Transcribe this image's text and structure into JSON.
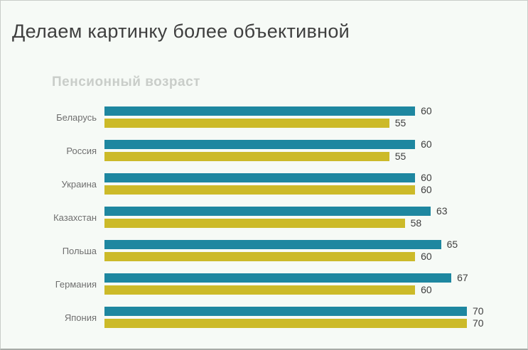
{
  "slide": {
    "title": "Делаем картинку более объективной",
    "background_color": "#f6faf6",
    "border_color": "#c9ccc9"
  },
  "text_colors": {
    "slide_title": "#3f3f3f",
    "chart_title": "#c9cdc9",
    "category_label": "#6f6f6f",
    "value_label": "#3e3e3e"
  },
  "chart_data": {
    "type": "bar",
    "orientation": "horizontal",
    "title": "Пенсионный возраст",
    "categories": [
      "Беларусь",
      "Россия",
      "Украина",
      "Казахстан",
      "Польша",
      "Германия",
      "Япония"
    ],
    "series": [
      {
        "name": "upper-teal",
        "color": "#1e87a0",
        "values": [
          60,
          60,
          60,
          63,
          65,
          67,
          70
        ]
      },
      {
        "name": "lower-yellow",
        "color": "#ccba29",
        "values": [
          55,
          55,
          60,
          58,
          60,
          60,
          70
        ]
      }
    ],
    "xlim": [
      0,
      70
    ],
    "data_labels": true,
    "legend": "none",
    "grid": false,
    "axis_ticks": "none"
  }
}
